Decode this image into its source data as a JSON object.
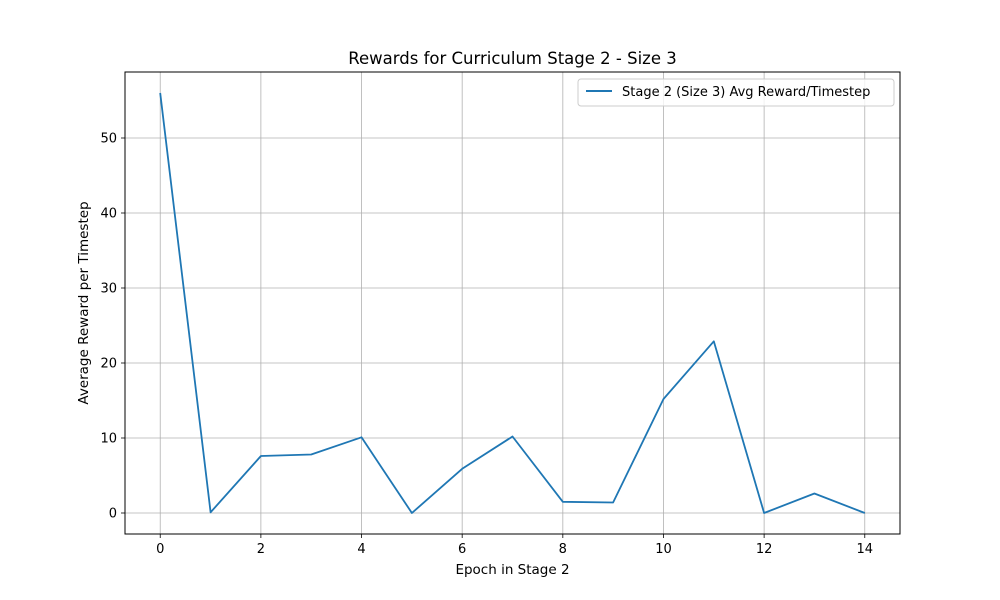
{
  "chart_data": {
    "type": "line",
    "title": "Rewards for Curriculum Stage 2 - Size 3",
    "xlabel": "Epoch in Stage 2",
    "ylabel": "Average Reward per Timestep",
    "x": [
      0,
      1,
      2,
      3,
      4,
      5,
      6,
      7,
      8,
      9,
      10,
      11,
      12,
      13,
      14
    ],
    "series": [
      {
        "name": "Stage 2 (Size 3) Avg Reward/Timestep",
        "color": "#1f77b4",
        "values": [
          56.0,
          0.1,
          7.6,
          7.8,
          10.1,
          0.0,
          5.9,
          10.2,
          1.5,
          1.4,
          15.2,
          22.9,
          0.0,
          2.6,
          0.0
        ]
      }
    ],
    "xlim": [
      -0.7,
      14.7
    ],
    "ylim": [
      -2.8,
      58.8
    ],
    "xticks": [
      0,
      2,
      4,
      6,
      8,
      10,
      12,
      14
    ],
    "yticks": [
      0,
      10,
      20,
      30,
      40,
      50
    ],
    "grid": true,
    "legend_position": "top-right"
  }
}
